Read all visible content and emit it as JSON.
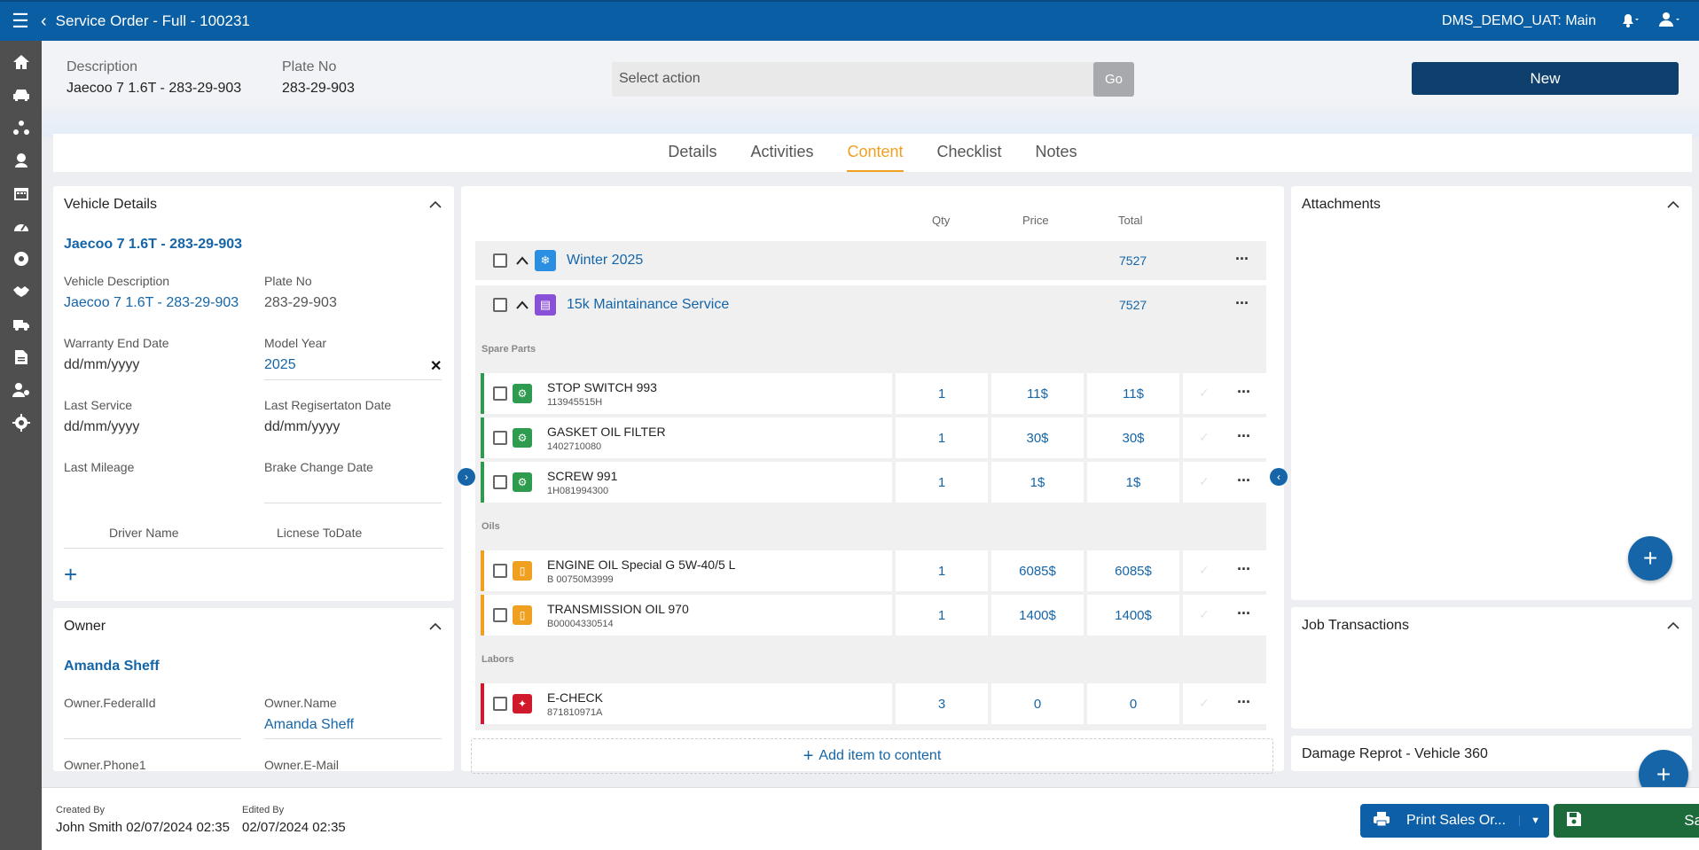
{
  "topbar": {
    "title": "Service Order - Full - 100231",
    "tenant": "DMS_DEMO_UAT: Main"
  },
  "sidebar": {
    "items": [
      "home-icon",
      "car-icon",
      "workflow-icon",
      "people-icon",
      "calendar-icon",
      "speedometer-icon",
      "tire-icon",
      "handshake-icon",
      "truck-icon",
      "document-icon",
      "user-gear-icon",
      "settings-icon"
    ]
  },
  "header": {
    "description_label": "Description",
    "description_value": "Jaecoo 7 1.6T - 283-29-903",
    "plate_label": "Plate No",
    "plate_value": "283-29-903",
    "action_placeholder": "Select action",
    "go_label": "Go",
    "new_label": "New"
  },
  "tabs": [
    {
      "label": "Details"
    },
    {
      "label": "Activities"
    },
    {
      "label": "Content"
    },
    {
      "label": "Checklist"
    },
    {
      "label": "Notes"
    }
  ],
  "vehicle": {
    "title": "Vehicle Details",
    "link": "Jaecoo 7 1.6T - 283-29-903",
    "vehicle_description_label": "Vehicle Description",
    "vehicle_description": "Jaecoo 7 1.6T - 283-29-903",
    "plate_label": "Plate No",
    "plate": "283-29-903",
    "warranty_label": "Warranty End Date",
    "warranty": "dd/mm/yyyy",
    "model_year_label": "Model Year",
    "model_year": "2025",
    "last_service_label": "Last Service",
    "last_service": "dd/mm/yyyy",
    "last_reg_label": "Last Regisertaton Date",
    "last_reg": "dd/mm/yyyy",
    "last_mileage_label": "Last Mileage",
    "brake_label": "Brake Change Date",
    "driver_name_label": "Driver Name",
    "license_label": "Licnese ToDate"
  },
  "owner": {
    "title": "Owner",
    "link": "Amanda Sheff",
    "federal_label": "Owner.FederalId",
    "name_label": "Owner.Name",
    "name": "Amanda Sheff",
    "phone_label": "Owner.Phone1",
    "email_label": "Owner.E-Mail"
  },
  "content": {
    "col_qty": "Qty",
    "col_price": "Price",
    "col_total": "Total",
    "groups": [
      {
        "name": "Winter 2025",
        "total": "7527"
      },
      {
        "name": "15k Maintainance Service",
        "total": "7527"
      }
    ],
    "sections": [
      "Spare Parts",
      "Oils",
      "Labors"
    ],
    "rows": [
      {
        "name": "STOP SWITCH 993",
        "code": "113945515H",
        "qty": "1",
        "price": "11$",
        "total": "11$"
      },
      {
        "name": "GASKET OIL FILTER",
        "code": "1402710080",
        "qty": "1",
        "price": "30$",
        "total": "30$"
      },
      {
        "name": "SCREW 991",
        "code": "1H081994300",
        "qty": "1",
        "price": "1$",
        "total": "1$"
      },
      {
        "name": "ENGINE OIL Special G 5W-40/5 L",
        "code": "B 00750M3999",
        "qty": "1",
        "price": "6085$",
        "total": "6085$"
      },
      {
        "name": "TRANSMISSION OIL 970",
        "code": "B00004330514",
        "qty": "1",
        "price": "1400$",
        "total": "1400$"
      },
      {
        "name": "E-CHECK",
        "code": "871810971A",
        "qty": "3",
        "price": "0",
        "total": "0"
      }
    ],
    "add_item": "Add item to content"
  },
  "right": {
    "attachments": "Attachments",
    "job_transactions": "Job Transactions",
    "damage": "Damage Reprot - Vehicle 360"
  },
  "footer": {
    "created_label": "Created By",
    "created_value": "John Smith 02/07/2024 02:35",
    "edited_label": "Edited By",
    "edited_value": "02/07/2024 02:35",
    "print_label": "Print Sales Or...",
    "save_label": "Save"
  },
  "colors": {
    "primary": "#0a5fa4",
    "accent": "#f0a020",
    "save": "#1d6b3b",
    "spare": "#2e9b4e",
    "oil": "#f0a020",
    "labor": "#d0192a"
  }
}
